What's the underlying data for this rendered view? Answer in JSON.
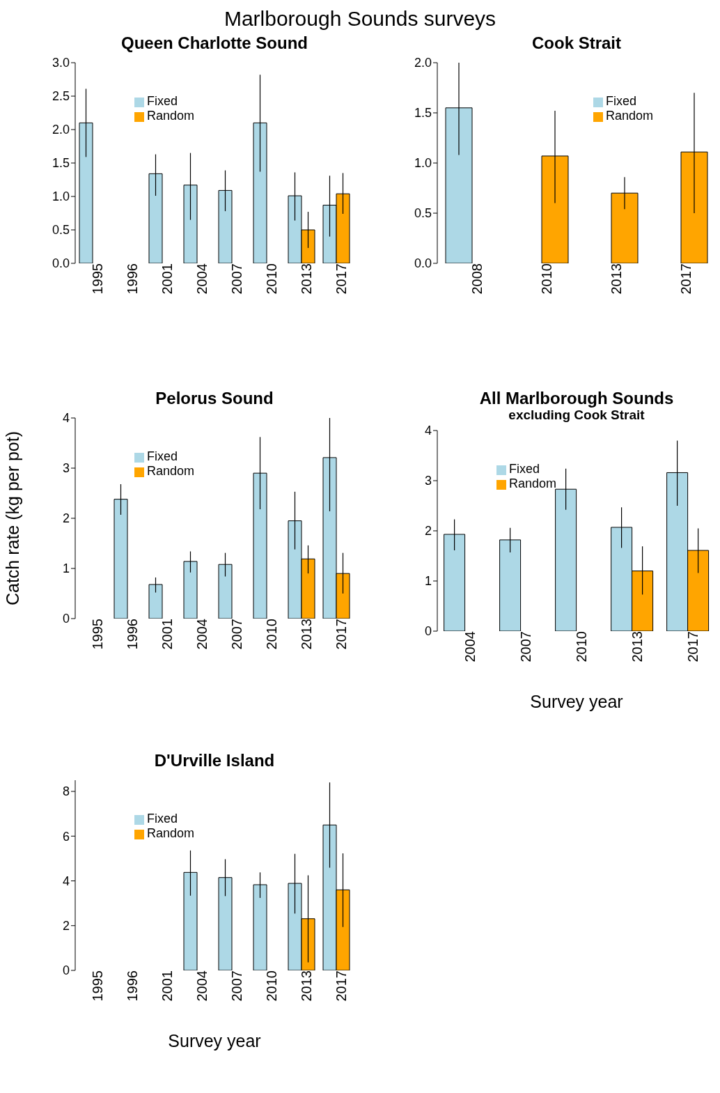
{
  "chart_data": [
    {
      "type": "bar",
      "title": "Queen Charlotte Sound",
      "annotations": [
        "Marlborough Sounds surveys"
      ],
      "categories": [
        "1995",
        "1996",
        "2001",
        "2004",
        "2007",
        "2010",
        "2013",
        "2017"
      ],
      "series": [
        {
          "name": "Fixed",
          "color": "#add8e6",
          "values": [
            2.1,
            null,
            1.34,
            1.17,
            1.09,
            2.1,
            1.01,
            0.87
          ],
          "errors": [
            [
              1.59,
              2.61
            ],
            null,
            [
              1.01,
              1.63
            ],
            [
              0.65,
              1.65
            ],
            [
              0.78,
              1.39
            ],
            [
              1.37,
              2.82
            ],
            [
              0.64,
              1.36
            ],
            [
              0.4,
              1.31
            ]
          ]
        },
        {
          "name": "Random",
          "color": "#ffa500",
          "values": [
            null,
            null,
            null,
            null,
            null,
            null,
            0.5,
            1.04
          ],
          "errors": [
            null,
            null,
            null,
            null,
            null,
            null,
            [
              0.23,
              0.77
            ],
            [
              0.74,
              1.35
            ]
          ]
        }
      ],
      "ylim": [
        0,
        3
      ],
      "yticks": [
        {
          "value": 0,
          "label": "0.0"
        },
        0.5,
        {
          "value": 1,
          "label": "1.0"
        },
        1.5,
        {
          "value": 2,
          "label": "2.0"
        },
        2.5,
        {
          "value": 3,
          "label": "3.0"
        }
      ],
      "grid": false,
      "legend": "top left"
    },
    {
      "type": "bar",
      "title": "Cook Strait",
      "categories": [
        "2008",
        "2010",
        "2013",
        "2017"
      ],
      "series": [
        {
          "name": "Fixed",
          "color": "#add8e6",
          "values": [
            1.55,
            null,
            null,
            null
          ],
          "errors": [
            [
              1.08,
              2.0
            ],
            null,
            null,
            null
          ]
        },
        {
          "name": "Random",
          "color": "#ffa500",
          "values": [
            null,
            1.07,
            0.7,
            1.11
          ],
          "errors": [
            null,
            [
              0.6,
              1.52
            ],
            [
              0.54,
              0.86
            ],
            [
              0.5,
              1.7
            ]
          ]
        }
      ],
      "ylim": [
        0,
        2
      ],
      "yticks": [
        {
          "value": 0,
          "label": "0.0"
        },
        0.5,
        {
          "value": 1,
          "label": "1.0"
        },
        1.5,
        {
          "value": 2,
          "label": "2.0"
        }
      ],
      "grid": false,
      "legend": "top right"
    },
    {
      "type": "bar",
      "title": "Pelorus Sound",
      "ylabel": "Catch rate (kg per pot)",
      "categories": [
        "1995",
        "1996",
        "2001",
        "2004",
        "2007",
        "2010",
        "2013",
        "2017"
      ],
      "series": [
        {
          "name": "Fixed",
          "color": "#add8e6",
          "values": [
            null,
            2.38,
            0.68,
            1.14,
            1.08,
            2.9,
            1.95,
            3.21
          ],
          "errors": [
            null,
            [
              2.07,
              2.68
            ],
            [
              0.52,
              0.82
            ],
            [
              0.92,
              1.34
            ],
            [
              0.84,
              1.31
            ],
            [
              2.18,
              3.62
            ],
            [
              1.38,
              2.53
            ],
            [
              2.14,
              4.0
            ]
          ]
        },
        {
          "name": "Random",
          "color": "#ffa500",
          "values": [
            null,
            null,
            null,
            null,
            null,
            null,
            1.19,
            0.9
          ],
          "errors": [
            null,
            null,
            null,
            null,
            null,
            null,
            [
              0.9,
              1.46
            ],
            [
              0.5,
              1.31
            ]
          ]
        }
      ],
      "ylim": [
        0,
        4
      ],
      "yticks": [
        0,
        1,
        2,
        3,
        4
      ],
      "grid": false,
      "legend": "top left"
    },
    {
      "type": "bar",
      "title": "All Marlborough Sounds",
      "subtitle": "excluding Cook Strait",
      "xlabel": "Survey year",
      "categories": [
        "2004",
        "2007",
        "2010",
        "2013",
        "2017"
      ],
      "series": [
        {
          "name": "Fixed",
          "color": "#add8e6",
          "values": [
            1.93,
            1.82,
            2.83,
            2.07,
            3.16
          ],
          "errors": [
            [
              1.61,
              2.23
            ],
            [
              1.57,
              2.06
            ],
            [
              2.42,
              3.24
            ],
            [
              1.66,
              2.47
            ],
            [
              2.5,
              3.8
            ]
          ]
        },
        {
          "name": "Random",
          "color": "#ffa500",
          "values": [
            null,
            null,
            null,
            1.2,
            1.61
          ],
          "errors": [
            null,
            null,
            null,
            [
              0.73,
              1.69
            ],
            [
              1.16,
              2.05
            ]
          ]
        }
      ],
      "ylim": [
        0,
        4
      ],
      "yticks": [
        0,
        1,
        2,
        3,
        4
      ],
      "grid": false,
      "legend": "top left"
    },
    {
      "type": "bar",
      "title": "D'Urville Island",
      "xlabel": "Survey year",
      "categories": [
        "1995",
        "1996",
        "2001",
        "2004",
        "2007",
        "2010",
        "2013",
        "2017"
      ],
      "series": [
        {
          "name": "Fixed",
          "color": "#add8e6",
          "values": [
            null,
            null,
            null,
            4.38,
            4.15,
            3.83,
            3.89,
            6.5
          ],
          "errors": [
            null,
            null,
            null,
            [
              3.34,
              5.36
            ],
            [
              3.32,
              4.97
            ],
            [
              3.24,
              4.38
            ],
            [
              2.54,
              5.21
            ],
            [
              4.59,
              8.4
            ]
          ]
        },
        {
          "name": "Random",
          "color": "#ffa500",
          "values": [
            null,
            null,
            null,
            null,
            null,
            null,
            2.31,
            3.6
          ],
          "errors": [
            null,
            null,
            null,
            null,
            null,
            null,
            [
              0.36,
              4.25
            ],
            [
              1.94,
              5.23
            ]
          ]
        }
      ],
      "ylim": [
        0,
        8.5
      ],
      "yticks": [
        0,
        2,
        4,
        6,
        8
      ],
      "grid": false,
      "legend": "top left"
    }
  ]
}
